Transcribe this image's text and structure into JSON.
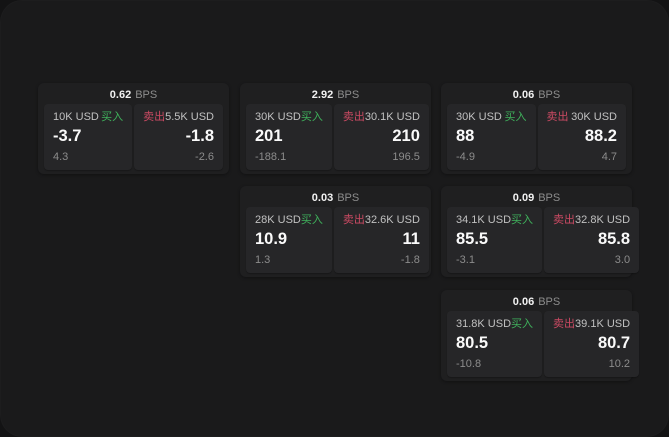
{
  "labels": {
    "bps": "BPS",
    "buy": "买入",
    "sell": "卖出"
  },
  "colors": {
    "buy_green": "#3fb25c",
    "sell_red": "#cb4a63",
    "page_bg": "#1a1a1b",
    "card_bg": "#1f1f20",
    "panel_bg": "#262628"
  },
  "cards": [
    {
      "bps": "0.62",
      "grid": {
        "row": 0,
        "col": 0
      },
      "buy": {
        "size": "10K USD",
        "value": "-3.7",
        "delta": "4.3"
      },
      "sell": {
        "size": "5.5K USD",
        "value": "-1.8",
        "delta": "-2.6"
      }
    },
    {
      "bps": "2.92",
      "grid": {
        "row": 0,
        "col": 1
      },
      "buy": {
        "size": "30K USD",
        "value": "201",
        "delta": "-188.1"
      },
      "sell": {
        "size": "30.1K USD",
        "value": "210",
        "delta": "196.5"
      }
    },
    {
      "bps": "0.06",
      "grid": {
        "row": 0,
        "col": 2
      },
      "buy": {
        "size": "30K USD",
        "value": "88",
        "delta": "-4.9"
      },
      "sell": {
        "size": "30K USD",
        "value": "88.2",
        "delta": "4.7"
      }
    },
    {
      "bps": "0.03",
      "grid": {
        "row": 1,
        "col": 1
      },
      "buy": {
        "size": "28K USD",
        "value": "10.9",
        "delta": "1.3"
      },
      "sell": {
        "size": "32.6K USD",
        "value": "11",
        "delta": "-1.8"
      }
    },
    {
      "bps": "0.09",
      "grid": {
        "row": 1,
        "col": 2
      },
      "buy": {
        "size": "34.1K USD",
        "value": "85.5",
        "delta": "-3.1"
      },
      "sell": {
        "size": "32.8K USD",
        "value": "85.8",
        "delta": "3.0"
      }
    },
    {
      "bps": "0.06",
      "grid": {
        "row": 2,
        "col": 2
      },
      "buy": {
        "size": "31.8K USD",
        "value": "80.5",
        "delta": "-10.8"
      },
      "sell": {
        "size": "39.1K USD",
        "value": "80.7",
        "delta": "10.2"
      }
    }
  ]
}
